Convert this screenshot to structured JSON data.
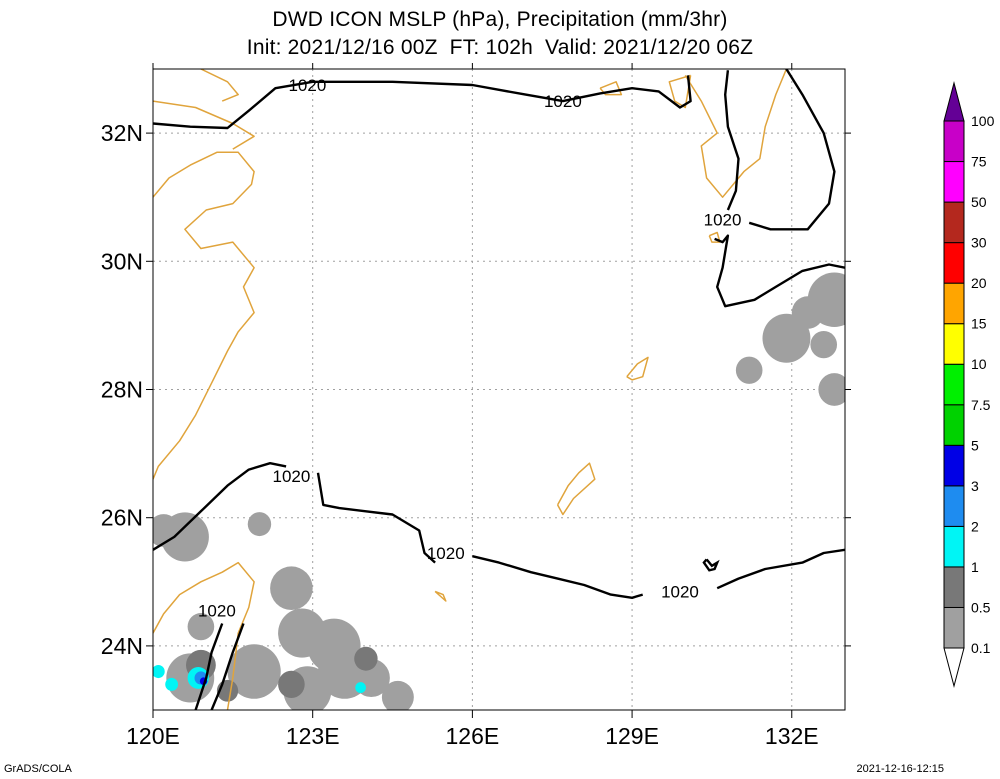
{
  "chart_data": {
    "type": "contour-map",
    "title": "DWD ICON MSLP (hPa), Precipitation (mm/3hr)",
    "subtitle": "Init: 2021/12/16 00Z  FT: 102h  Valid: 2021/12/20 06Z",
    "xlim": [
      120,
      133
    ],
    "ylim": [
      23,
      33
    ],
    "x_ticks": [
      {
        "value": 120,
        "label": "120E"
      },
      {
        "value": 123,
        "label": "123E"
      },
      {
        "value": 126,
        "label": "126E"
      },
      {
        "value": 129,
        "label": "129E"
      },
      {
        "value": 132,
        "label": "132E"
      }
    ],
    "y_ticks": [
      {
        "value": 24,
        "label": "24N"
      },
      {
        "value": 26,
        "label": "26N"
      },
      {
        "value": 28,
        "label": "28N"
      },
      {
        "value": 30,
        "label": "30N"
      },
      {
        "value": 32,
        "label": "32N"
      }
    ],
    "grid": true,
    "contour_labels": [
      {
        "text": "1020",
        "lon": 122.9,
        "lat": 32.75
      },
      {
        "text": "1020",
        "lon": 127.7,
        "lat": 32.5
      },
      {
        "text": "1020",
        "lon": 130.7,
        "lat": 30.65
      },
      {
        "text": "1020",
        "lon": 122.6,
        "lat": 26.65
      },
      {
        "text": "1020",
        "lon": 125.5,
        "lat": 25.45
      },
      {
        "text": "1020",
        "lon": 129.9,
        "lat": 24.85
      },
      {
        "text": "1020",
        "lon": 121.2,
        "lat": 24.55
      }
    ],
    "isobar_1020": [
      [
        [
          120.0,
          32.15
        ],
        [
          120.7,
          32.1
        ],
        [
          121.4,
          32.08
        ],
        [
          121.8,
          32.35
        ],
        [
          122.3,
          32.7
        ],
        [
          123.0,
          32.8
        ],
        [
          124.5,
          32.8
        ],
        [
          126.0,
          32.75
        ],
        [
          127.0,
          32.6
        ],
        [
          127.7,
          32.5
        ],
        [
          128.4,
          32.62
        ],
        [
          129.0,
          32.7
        ],
        [
          129.5,
          32.65
        ],
        [
          129.9,
          32.4
        ],
        [
          130.1,
          32.5
        ],
        [
          130.05,
          32.9
        ]
      ],
      [
        [
          130.8,
          32.98
        ],
        [
          130.75,
          32.6
        ],
        [
          130.8,
          32.1
        ],
        [
          131.0,
          31.6
        ],
        [
          130.95,
          31.1
        ],
        [
          130.8,
          30.8
        ]
      ],
      [
        [
          130.55,
          30.35
        ],
        [
          130.7,
          30.3
        ],
        [
          130.8,
          30.4
        ],
        [
          130.7,
          29.9
        ],
        [
          130.6,
          29.6
        ],
        [
          130.75,
          29.3
        ],
        [
          131.3,
          29.4
        ],
        [
          131.7,
          29.6
        ],
        [
          132.2,
          29.85
        ],
        [
          132.7,
          29.95
        ],
        [
          133.0,
          29.9
        ]
      ],
      [
        [
          131.9,
          33.0
        ],
        [
          132.2,
          32.6
        ],
        [
          132.6,
          32.0
        ],
        [
          132.8,
          31.4
        ],
        [
          132.7,
          30.9
        ],
        [
          132.3,
          30.5
        ],
        [
          131.6,
          30.5
        ],
        [
          131.2,
          30.6
        ]
      ],
      [
        [
          120.0,
          25.5
        ],
        [
          120.4,
          25.7
        ],
        [
          120.9,
          26.1
        ],
        [
          121.4,
          26.5
        ],
        [
          121.8,
          26.75
        ],
        [
          122.2,
          26.85
        ],
        [
          122.5,
          26.8
        ]
      ],
      [
        [
          123.1,
          26.7
        ],
        [
          123.2,
          26.2
        ],
        [
          123.5,
          26.15
        ],
        [
          124.0,
          26.1
        ],
        [
          124.5,
          26.05
        ],
        [
          125.0,
          25.8
        ],
        [
          125.1,
          25.45
        ],
        [
          125.3,
          25.3
        ]
      ],
      [
        [
          126.0,
          25.4
        ],
        [
          126.5,
          25.3
        ],
        [
          127.1,
          25.15
        ],
        [
          127.6,
          25.05
        ],
        [
          128.1,
          24.95
        ],
        [
          128.6,
          24.8
        ],
        [
          129.0,
          24.75
        ],
        [
          129.2,
          24.8
        ]
      ],
      [
        [
          130.6,
          24.9
        ],
        [
          131.0,
          25.05
        ],
        [
          131.5,
          25.2
        ],
        [
          132.2,
          25.3
        ],
        [
          132.6,
          25.45
        ],
        [
          133.0,
          25.5
        ]
      ],
      [
        [
          121.7,
          24.35
        ],
        [
          121.5,
          23.9
        ],
        [
          121.3,
          23.4
        ],
        [
          121.1,
          23.0
        ]
      ],
      [
        [
          121.3,
          24.35
        ],
        [
          121.1,
          23.9
        ],
        [
          121.0,
          23.5
        ],
        [
          120.8,
          23.0
        ]
      ]
    ],
    "closed_isobar_small": [
      [
        130.4,
        25.35
      ],
      [
        130.5,
        25.25
      ],
      [
        130.6,
        25.3
      ],
      [
        130.55,
        25.2
      ],
      [
        130.45,
        25.18
      ],
      [
        130.35,
        25.3
      ],
      [
        130.4,
        25.35
      ]
    ],
    "coastlines": [
      [
        [
          120.0,
          31.0
        ],
        [
          120.3,
          31.3
        ],
        [
          120.7,
          31.5
        ],
        [
          121.2,
          31.7
        ],
        [
          121.6,
          31.7
        ],
        [
          121.9,
          31.4
        ],
        [
          121.85,
          31.2
        ],
        [
          121.5,
          30.9
        ],
        [
          121.0,
          30.8
        ],
        [
          120.6,
          30.5
        ],
        [
          120.9,
          30.2
        ],
        [
          121.5,
          30.3
        ],
        [
          121.9,
          29.9
        ],
        [
          121.7,
          29.6
        ],
        [
          121.9,
          29.2
        ],
        [
          121.6,
          28.9
        ],
        [
          121.4,
          28.6
        ],
        [
          121.1,
          28.1
        ],
        [
          120.8,
          27.6
        ],
        [
          120.5,
          27.2
        ],
        [
          120.1,
          26.8
        ],
        [
          120.0,
          26.6
        ]
      ],
      [
        [
          120.0,
          32.5
        ],
        [
          120.8,
          32.4
        ],
        [
          121.5,
          32.15
        ],
        [
          121.9,
          31.95
        ],
        [
          121.5,
          31.75
        ]
      ],
      [
        [
          120.9,
          33.0
        ],
        [
          121.4,
          32.8
        ],
        [
          121.6,
          32.6
        ],
        [
          121.3,
          32.5
        ]
      ],
      [
        [
          120.0,
          24.2
        ],
        [
          120.2,
          24.5
        ],
        [
          120.5,
          24.8
        ],
        [
          120.9,
          25.0
        ],
        [
          121.3,
          25.15
        ],
        [
          121.6,
          25.3
        ],
        [
          121.9,
          25.0
        ],
        [
          121.8,
          24.6
        ],
        [
          121.6,
          24.2
        ],
        [
          121.5,
          23.5
        ],
        [
          121.4,
          23.0
        ]
      ],
      [
        [
          127.6,
          26.2
        ],
        [
          127.8,
          26.5
        ],
        [
          128.0,
          26.7
        ],
        [
          128.2,
          26.85
        ],
        [
          128.3,
          26.6
        ],
        [
          127.9,
          26.3
        ],
        [
          127.7,
          26.05
        ],
        [
          127.6,
          26.2
        ]
      ],
      [
        [
          128.9,
          28.2
        ],
        [
          129.1,
          28.4
        ],
        [
          129.3,
          28.5
        ],
        [
          129.2,
          28.2
        ],
        [
          129.0,
          28.15
        ],
        [
          128.9,
          28.2
        ]
      ],
      [
        [
          130.0,
          32.9
        ],
        [
          130.3,
          32.5
        ],
        [
          130.6,
          32.0
        ],
        [
          130.3,
          31.8
        ],
        [
          130.4,
          31.3
        ],
        [
          130.7,
          31.0
        ],
        [
          131.1,
          31.4
        ],
        [
          131.4,
          31.6
        ],
        [
          131.5,
          32.1
        ],
        [
          131.7,
          32.6
        ],
        [
          131.9,
          33.0
        ]
      ],
      [
        [
          130.1,
          32.9
        ],
        [
          130.0,
          32.4
        ],
        [
          129.8,
          32.5
        ],
        [
          129.7,
          32.8
        ],
        [
          130.1,
          32.9
        ]
      ],
      [
        [
          130.45,
          30.4
        ],
        [
          130.6,
          30.45
        ],
        [
          130.65,
          30.3
        ],
        [
          130.5,
          30.3
        ],
        [
          130.45,
          30.4
        ]
      ],
      [
        [
          128.4,
          32.7
        ],
        [
          128.7,
          32.8
        ],
        [
          128.8,
          32.6
        ],
        [
          128.5,
          32.6
        ],
        [
          128.4,
          32.7
        ]
      ],
      [
        [
          125.3,
          24.85
        ],
        [
          125.45,
          24.8
        ],
        [
          125.5,
          24.7
        ],
        [
          125.3,
          24.85
        ]
      ]
    ],
    "precip_cells": [
      {
        "lon": 120.6,
        "lat": 25.7,
        "r": 0.45,
        "level": "0.1"
      },
      {
        "lon": 120.2,
        "lat": 25.8,
        "r": 0.3,
        "level": "0.1"
      },
      {
        "lon": 122.0,
        "lat": 25.9,
        "r": 0.22,
        "level": "0.1"
      },
      {
        "lon": 122.6,
        "lat": 24.9,
        "r": 0.4,
        "level": "0.1"
      },
      {
        "lon": 122.8,
        "lat": 24.2,
        "r": 0.45,
        "level": "0.1"
      },
      {
        "lon": 123.4,
        "lat": 24.0,
        "r": 0.5,
        "level": "0.1"
      },
      {
        "lon": 123.6,
        "lat": 23.6,
        "r": 0.5,
        "level": "0.1"
      },
      {
        "lon": 124.1,
        "lat": 23.5,
        "r": 0.35,
        "level": "0.1"
      },
      {
        "lon": 122.9,
        "lat": 23.3,
        "r": 0.45,
        "level": "0.1"
      },
      {
        "lon": 121.9,
        "lat": 23.6,
        "r": 0.5,
        "level": "0.1"
      },
      {
        "lon": 120.7,
        "lat": 23.5,
        "r": 0.45,
        "level": "0.1"
      },
      {
        "lon": 120.9,
        "lat": 24.3,
        "r": 0.25,
        "level": "0.1"
      },
      {
        "lon": 124.6,
        "lat": 23.2,
        "r": 0.3,
        "level": "0.1"
      },
      {
        "lon": 132.8,
        "lat": 29.4,
        "r": 0.5,
        "level": "0.1"
      },
      {
        "lon": 132.3,
        "lat": 29.2,
        "r": 0.3,
        "level": "0.1"
      },
      {
        "lon": 131.9,
        "lat": 28.8,
        "r": 0.45,
        "level": "0.1"
      },
      {
        "lon": 131.2,
        "lat": 28.3,
        "r": 0.25,
        "level": "0.1"
      },
      {
        "lon": 132.8,
        "lat": 28.0,
        "r": 0.3,
        "level": "0.1"
      },
      {
        "lon": 132.6,
        "lat": 28.7,
        "r": 0.25,
        "level": "0.1"
      },
      {
        "lon": 124.0,
        "lat": 23.8,
        "r": 0.22,
        "level": "0.5"
      },
      {
        "lon": 122.6,
        "lat": 23.4,
        "r": 0.25,
        "level": "0.5"
      },
      {
        "lon": 121.4,
        "lat": 23.3,
        "r": 0.2,
        "level": "0.5"
      },
      {
        "lon": 120.9,
        "lat": 23.7,
        "r": 0.28,
        "level": "0.5"
      },
      {
        "lon": 120.85,
        "lat": 23.5,
        "r": 0.2,
        "level": "1"
      },
      {
        "lon": 120.1,
        "lat": 23.6,
        "r": 0.12,
        "level": "1"
      },
      {
        "lon": 120.35,
        "lat": 23.4,
        "r": 0.12,
        "level": "1"
      },
      {
        "lon": 123.9,
        "lat": 23.35,
        "r": 0.1,
        "level": "1"
      },
      {
        "lon": 120.9,
        "lat": 23.5,
        "r": 0.12,
        "level": "2"
      },
      {
        "lon": 120.95,
        "lat": 23.45,
        "r": 0.07,
        "level": "3"
      }
    ],
    "colorbar": {
      "levels": [
        "0.1",
        "0.5",
        "1",
        "2",
        "3",
        "5",
        "7.5",
        "10",
        "15",
        "20",
        "30",
        "50",
        "75",
        "100"
      ],
      "colors": [
        "#c8c8c8",
        "#a0a0a0",
        "#787878",
        "#00f5f5",
        "#1e8cf0",
        "#0000e6",
        "#00d200",
        "#00f000",
        "#ffff00",
        "#ffa500",
        "#ff0000",
        "#b4281e",
        "#ff00ff",
        "#c800c8",
        "#9600a0",
        "#640096"
      ]
    },
    "colors": {
      "isobar": "#000000",
      "coastline": "#e0a43c",
      "grid": "#a0a0a0"
    }
  },
  "footer": {
    "left": "GrADS/COLA",
    "right": "2021-12-16-12:15"
  }
}
